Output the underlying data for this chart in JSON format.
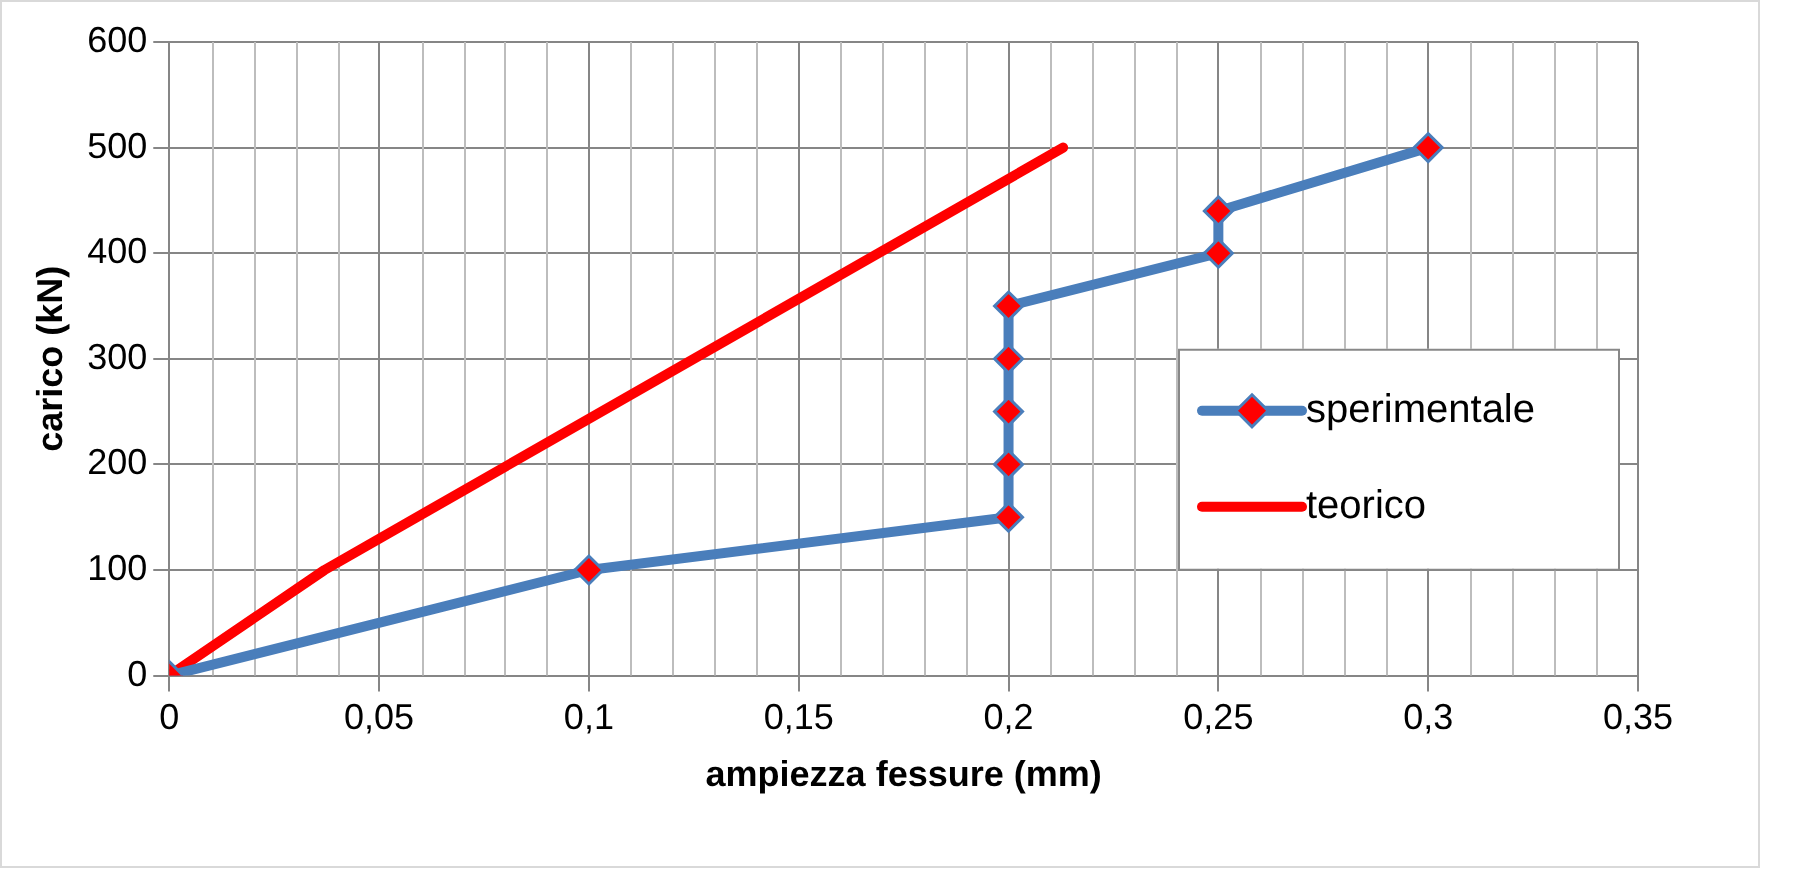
{
  "chart_data": {
    "type": "line",
    "xlabel": "ampiezza fessure (mm)",
    "ylabel": "carico (kN)",
    "series": [
      {
        "name": "sperimentale",
        "color": "#4a7ebb",
        "marker": "diamond",
        "x": [
          0,
          0.1,
          0.2,
          0.2,
          0.2,
          0.2,
          0.2,
          0.25,
          0.25,
          0.3
        ],
        "values": [
          0,
          100,
          150,
          200,
          250,
          300,
          350,
          400,
          440,
          500
        ]
      },
      {
        "name": "teorico",
        "color": "#ff0000",
        "marker": "none",
        "x": [
          0,
          0.037,
          0.213
        ],
        "values": [
          0,
          100,
          500
        ]
      }
    ],
    "xlim": [
      0,
      0.35
    ],
    "xticks": [
      {
        "value": 0,
        "label": "0"
      },
      {
        "value": 0.05,
        "label": "0,05"
      },
      {
        "value": 0.1,
        "label": "0,1"
      },
      {
        "value": 0.15,
        "label": "0,15"
      },
      {
        "value": 0.2,
        "label": "0,2"
      },
      {
        "value": 0.25,
        "label": "0,25"
      },
      {
        "value": 0.3,
        "label": "0,3"
      },
      {
        "value": 0.35,
        "label": "0,35"
      }
    ],
    "ylim": [
      0,
      600
    ],
    "yticks": [
      0,
      100,
      200,
      300,
      400,
      500,
      600
    ],
    "grid": true,
    "legend": "right",
    "line_style": "solid"
  }
}
